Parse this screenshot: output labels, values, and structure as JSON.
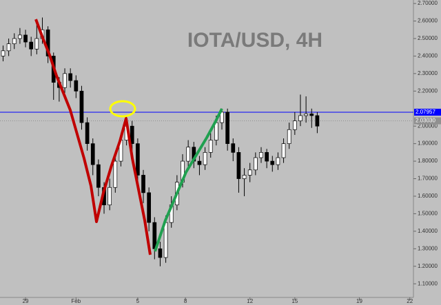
{
  "chart_data": {
    "type": "candlestick",
    "title": "IOTA/USD, 4H",
    "x": [
      -8,
      -6,
      -4,
      -2,
      0,
      2,
      4,
      6,
      8,
      10,
      12,
      14,
      16,
      18,
      20,
      22,
      24,
      26,
      28,
      30,
      32,
      34,
      36,
      38,
      40,
      42,
      44,
      46,
      48,
      50,
      52,
      54,
      56,
      58,
      60,
      62,
      64,
      66,
      68,
      70,
      72,
      74,
      76,
      78,
      80,
      82,
      84,
      86,
      88,
      90,
      92,
      94,
      96,
      98,
      100,
      102,
      104
    ],
    "open": [
      2.4,
      2.43,
      2.47,
      2.5,
      2.52,
      2.48,
      2.44,
      2.5,
      2.55,
      2.4,
      2.25,
      2.22,
      2.3,
      2.26,
      2.2,
      2.02,
      1.9,
      1.78,
      1.65,
      1.55,
      1.65,
      1.8,
      1.92,
      2.0,
      1.9,
      1.72,
      1.62,
      1.45,
      1.3,
      1.25,
      1.45,
      1.55,
      1.68,
      1.8,
      1.88,
      1.8,
      1.78,
      1.85,
      1.92,
      2.02,
      2.08,
      1.9,
      1.85,
      1.7,
      1.72,
      1.75,
      1.82,
      1.85,
      1.8,
      1.78,
      1.82,
      1.9,
      1.98,
      2.03,
      2.06,
      2.07,
      2.06
    ],
    "high": [
      2.46,
      2.5,
      2.53,
      2.56,
      2.55,
      2.51,
      2.58,
      2.62,
      2.57,
      2.42,
      2.28,
      2.33,
      2.33,
      2.29,
      2.23,
      2.05,
      1.93,
      1.81,
      1.68,
      1.7,
      1.84,
      1.96,
      2.06,
      2.03,
      1.93,
      1.75,
      1.65,
      1.48,
      1.34,
      1.49,
      1.6,
      1.72,
      1.84,
      1.92,
      1.91,
      1.83,
      1.88,
      1.96,
      2.06,
      2.1,
      2.1,
      1.93,
      1.88,
      1.76,
      1.79,
      1.85,
      1.88,
      1.87,
      1.83,
      1.85,
      1.93,
      2.02,
      2.08,
      2.18,
      2.17,
      2.1,
      2.08
    ],
    "low": [
      2.37,
      2.4,
      2.44,
      2.47,
      2.45,
      2.4,
      2.41,
      2.47,
      2.36,
      2.15,
      2.14,
      2.19,
      2.22,
      2.16,
      1.98,
      1.86,
      1.72,
      1.6,
      1.5,
      1.52,
      1.62,
      1.77,
      1.89,
      1.86,
      1.68,
      1.56,
      1.4,
      1.24,
      1.2,
      1.22,
      1.42,
      1.52,
      1.65,
      1.77,
      1.76,
      1.72,
      1.75,
      1.82,
      1.89,
      1.98,
      1.86,
      1.8,
      1.62,
      1.6,
      1.68,
      1.72,
      1.79,
      1.76,
      1.74,
      1.75,
      1.79,
      1.87,
      1.95,
      2.0,
      2.02,
      1.99,
      1.96
    ],
    "close": [
      2.43,
      2.47,
      2.5,
      2.52,
      2.48,
      2.44,
      2.5,
      2.55,
      2.4,
      2.25,
      2.22,
      2.3,
      2.26,
      2.2,
      2.02,
      1.9,
      1.78,
      1.65,
      1.55,
      1.65,
      1.8,
      1.92,
      2.0,
      1.9,
      1.72,
      1.62,
      1.45,
      1.3,
      1.25,
      1.45,
      1.55,
      1.68,
      1.8,
      1.88,
      1.8,
      1.78,
      1.85,
      1.92,
      2.02,
      2.08,
      1.9,
      1.85,
      1.7,
      1.72,
      1.75,
      1.82,
      1.85,
      1.8,
      1.78,
      1.82,
      1.9,
      1.98,
      2.03,
      2.06,
      2.07,
      2.06,
      2.0
    ],
    "up_color": "#ffffff",
    "down_color": "#000000",
    "xlim": [
      -9.1,
      137.8
    ],
    "xticks": [
      {
        "value": 0,
        "label": "29"
      },
      {
        "value": 18,
        "label": "Feb"
      },
      {
        "value": 40,
        "label": "5"
      },
      {
        "value": 57,
        "label": "8"
      },
      {
        "value": 80,
        "label": "12"
      },
      {
        "value": 96,
        "label": "15"
      },
      {
        "value": 119,
        "label": "19"
      },
      {
        "value": 137,
        "label": "22"
      }
    ],
    "ylim": [
      1.03,
      2.72
    ],
    "yticks": [
      {
        "value": 1.1,
        "label": "1.10000"
      },
      {
        "value": 1.2,
        "label": "1.20000"
      },
      {
        "value": 1.3,
        "label": "1.30000"
      },
      {
        "value": 1.4,
        "label": "1.40000"
      },
      {
        "value": 1.5,
        "label": "1.50000"
      },
      {
        "value": 1.6,
        "label": "1.60000"
      },
      {
        "value": 1.7,
        "label": "1.70000"
      },
      {
        "value": 1.8,
        "label": "1.80000"
      },
      {
        "value": 1.9,
        "label": "1.90000"
      },
      {
        "value": 2.0,
        "label": "2.00000"
      },
      {
        "value": 2.2,
        "label": "2.20000"
      },
      {
        "value": 2.3,
        "label": "2.30000"
      },
      {
        "value": 2.4,
        "label": "2.40000"
      },
      {
        "value": 2.5,
        "label": "2.50000"
      },
      {
        "value": 2.6,
        "label": "2.60000"
      },
      {
        "value": 2.7,
        "label": "2.70000"
      }
    ],
    "price_lines": [
      {
        "value": 2.07957,
        "label": "2.07957",
        "color": "#0000ff"
      },
      {
        "value": 2.0303,
        "label": "2.03030",
        "color": "#909090"
      }
    ]
  }
}
